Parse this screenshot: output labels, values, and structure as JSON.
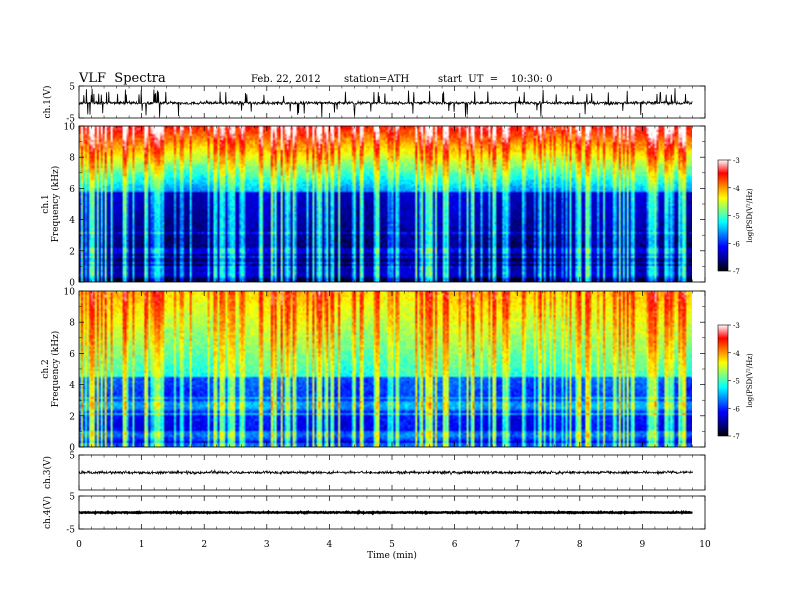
{
  "header": {
    "title": "VLF  Spectra",
    "date": "Feb. 22, 2012",
    "station": "station=ATH",
    "start": "start  UT  =    10:30: 0"
  },
  "colors": {
    "background": "#ffffff",
    "axes": "#000000",
    "colormap": [
      "#000000",
      "#00008f",
      "#0000ff",
      "#0080ff",
      "#00ffff",
      "#80ff80",
      "#ffff00",
      "#ff8000",
      "#ff0000",
      "#ffffff"
    ]
  },
  "chart_data": [
    {
      "id": "ch1_waveform",
      "type": "line",
      "ylabel": "ch.1(V)",
      "ylim": [
        -5,
        5
      ],
      "yticks": [
        "5",
        "-5"
      ],
      "xlim": [
        0,
        10
      ],
      "baseline": -0.3,
      "noise_amplitude": 0.8,
      "spike_amplitude": 4.5
    },
    {
      "id": "ch1_spectrogram",
      "type": "heatmap",
      "ylabel": [
        "ch.1",
        "Frequency  (kHz)"
      ],
      "ylim": [
        0,
        10
      ],
      "yticks": [
        "0",
        "2",
        "4",
        "6",
        "8",
        "10"
      ],
      "xlim": [
        0,
        9.8
      ],
      "colorbar": {
        "label": "log(PSD(V²/Hz)",
        "range": [
          -7,
          -3
        ],
        "ticks": [
          "-7",
          "-6",
          "-5",
          "-4",
          "-3"
        ]
      },
      "noise_floor_khz": 5.8,
      "low_level": -6.8,
      "high_level": -3.5
    },
    {
      "id": "ch2_spectrogram",
      "type": "heatmap",
      "ylabel": [
        "ch.2",
        "Frequency  (kHz)"
      ],
      "ylim": [
        0,
        10
      ],
      "yticks": [
        "0",
        "2",
        "4",
        "6",
        "8",
        "10"
      ],
      "xlim": [
        0,
        9.8
      ],
      "colorbar": {
        "label": "log(PSD(V²/Hz)",
        "range": [
          -7,
          -3
        ],
        "ticks": [
          "-7",
          "-6",
          "-5",
          "-4",
          "-3"
        ]
      },
      "noise_floor_khz": 4.5,
      "low_level": -6.3,
      "high_level": -4.2
    },
    {
      "id": "ch3_waveform",
      "type": "line",
      "ylabel": "ch.3(V)",
      "ylim": [
        -5,
        5
      ],
      "yticks": [
        "5"
      ],
      "xlim": [
        0,
        10
      ],
      "baseline": 0,
      "noise_amplitude": 0.7,
      "spike_amplitude": 0
    },
    {
      "id": "ch4_waveform",
      "type": "line",
      "ylabel": "ch.4(V)",
      "ylim": [
        -5,
        5
      ],
      "yticks": [
        "5",
        "-5"
      ],
      "xlim": [
        0,
        10
      ],
      "baseline": 0,
      "noise_amplitude": 0.25,
      "spike_amplitude": 0,
      "xlabel": "Time  (min)",
      "xticks": [
        "0",
        "1",
        "2",
        "3",
        "4",
        "5",
        "6",
        "7",
        "8",
        "9",
        "10"
      ]
    }
  ]
}
